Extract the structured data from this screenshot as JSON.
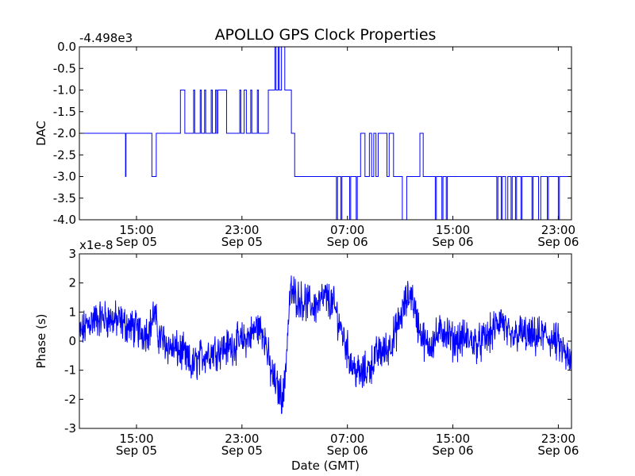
{
  "title": "APOLLO GPS Clock Properties",
  "chart_data": [
    {
      "type": "line",
      "ylabel": "DAC",
      "xlabel": "",
      "y_offset_text": "-4.498e3",
      "ylim": [
        -4.0,
        0.0
      ],
      "yticks": [
        0.0,
        -0.5,
        -1.0,
        -1.5,
        -2.0,
        -2.5,
        -3.0,
        -3.5,
        -4.0
      ],
      "ytick_labels": [
        "0.0",
        "-0.5",
        "-1.0",
        "-1.5",
        "-2.0",
        "-2.5",
        "-3.0",
        "-3.5",
        "-4.0"
      ],
      "xlim": [
        "Sep 05 10:40",
        "Sep 07 00:00"
      ],
      "xticks": [
        {
          "time": "Sep 05 15:00",
          "line1": "15:00",
          "line2": "Sep 05"
        },
        {
          "time": "Sep 05 23:00",
          "line1": "23:00",
          "line2": "Sep 05"
        },
        {
          "time": "Sep 06 07:00",
          "line1": "07:00",
          "line2": "Sep 06"
        },
        {
          "time": "Sep 06 15:00",
          "line1": "15:00",
          "line2": "Sep 06"
        },
        {
          "time": "Sep 06 23:00",
          "line1": "23:00",
          "line2": "Sep 06"
        }
      ],
      "series": [
        {
          "color": "#0000ff",
          "step_points": [
            [
              "Sep 05 10:40",
              -2.0
            ],
            [
              "Sep 05 14:10",
              -3.0
            ],
            [
              "Sep 05 14:12",
              -2.0
            ],
            [
              "Sep 05 16:10",
              -3.0
            ],
            [
              "Sep 05 16:30",
              -2.0
            ],
            [
              "Sep 05 18:00",
              -2.0
            ],
            [
              "Sep 05 18:20",
              -1.0
            ],
            [
              "Sep 05 18:40",
              -2.0
            ],
            [
              "Sep 05 19:20",
              -1.0
            ],
            [
              "Sep 05 19:25",
              -2.0
            ],
            [
              "Sep 05 19:50",
              -1.0
            ],
            [
              "Sep 05 19:55",
              -2.0
            ],
            [
              "Sep 05 20:10",
              -1.0
            ],
            [
              "Sep 05 20:15",
              -2.0
            ],
            [
              "Sep 05 20:40",
              -1.0
            ],
            [
              "Sep 05 20:45",
              -2.0
            ],
            [
              "Sep 05 21:00",
              -1.0
            ],
            [
              "Sep 05 21:05",
              -2.0
            ],
            [
              "Sep 05 21:10",
              -1.0
            ],
            [
              "Sep 05 21:50",
              -2.0
            ],
            [
              "Sep 05 22:50",
              -1.0
            ],
            [
              "Sep 05 22:55",
              -2.0
            ],
            [
              "Sep 05 23:10",
              -1.0
            ],
            [
              "Sep 05 23:20",
              -2.0
            ],
            [
              "Sep 05 23:40",
              -1.0
            ],
            [
              "Sep 05 23:45",
              -2.0
            ],
            [
              "Sep 06 00:10",
              -1.0
            ],
            [
              "Sep 06 00:15",
              -2.0
            ],
            [
              "Sep 06 01:00",
              -1.0
            ],
            [
              "Sep 06 01:30",
              0.0
            ],
            [
              "Sep 06 01:35",
              -1.0
            ],
            [
              "Sep 06 01:45",
              0.0
            ],
            [
              "Sep 06 01:50",
              -1.0
            ],
            [
              "Sep 06 02:00",
              0.0
            ],
            [
              "Sep 06 02:15",
              -1.0
            ],
            [
              "Sep 06 02:45",
              -2.0
            ],
            [
              "Sep 06 03:00",
              -3.0
            ],
            [
              "Sep 06 06:10",
              -4.0
            ],
            [
              "Sep 06 06:15",
              -3.0
            ],
            [
              "Sep 06 06:30",
              -4.0
            ],
            [
              "Sep 06 06:35",
              -3.0
            ],
            [
              "Sep 06 07:10",
              -4.0
            ],
            [
              "Sep 06 07:15",
              -3.0
            ],
            [
              "Sep 06 07:40",
              -4.0
            ],
            [
              "Sep 06 07:45",
              -3.0
            ],
            [
              "Sep 06 08:00",
              -2.0
            ],
            [
              "Sep 06 08:20",
              -3.0
            ],
            [
              "Sep 06 08:40",
              -2.0
            ],
            [
              "Sep 06 08:50",
              -3.0
            ],
            [
              "Sep 06 09:00",
              -2.0
            ],
            [
              "Sep 06 09:10",
              -3.0
            ],
            [
              "Sep 06 09:20",
              -2.0
            ],
            [
              "Sep 06 10:00",
              -3.0
            ],
            [
              "Sep 06 10:10",
              -2.0
            ],
            [
              "Sep 06 10:30",
              -3.0
            ],
            [
              "Sep 06 11:10",
              -4.0
            ],
            [
              "Sep 06 11:30",
              -3.0
            ],
            [
              "Sep 06 12:00",
              -3.0
            ],
            [
              "Sep 06 12:30",
              -2.0
            ],
            [
              "Sep 06 12:45",
              -3.0
            ],
            [
              "Sep 06 13:40",
              -4.0
            ],
            [
              "Sep 06 13:45",
              -3.0
            ],
            [
              "Sep 06 14:10",
              -4.0
            ],
            [
              "Sep 06 14:15",
              -3.0
            ],
            [
              "Sep 06 14:30",
              -4.0
            ],
            [
              "Sep 06 14:35",
              -3.0
            ],
            [
              "Sep 06 18:20",
              -4.0
            ],
            [
              "Sep 06 18:25",
              -3.0
            ],
            [
              "Sep 06 18:40",
              -4.0
            ],
            [
              "Sep 06 18:45",
              -3.0
            ],
            [
              "Sep 06 19:00",
              -4.0
            ],
            [
              "Sep 06 19:10",
              -3.0
            ],
            [
              "Sep 06 19:25",
              -4.0
            ],
            [
              "Sep 06 19:30",
              -3.0
            ],
            [
              "Sep 06 19:45",
              -4.0
            ],
            [
              "Sep 06 19:50",
              -3.0
            ],
            [
              "Sep 06 20:10",
              -4.0
            ],
            [
              "Sep 06 20:15",
              -3.0
            ],
            [
              "Sep 06 21:00",
              -4.0
            ],
            [
              "Sep 06 21:05",
              -3.0
            ],
            [
              "Sep 06 21:30",
              -4.0
            ],
            [
              "Sep 06 21:40",
              -3.0
            ],
            [
              "Sep 06 22:10",
              -4.0
            ],
            [
              "Sep 06 22:15",
              -3.0
            ],
            [
              "Sep 06 23:00",
              -4.0
            ],
            [
              "Sep 06 23:05",
              -3.0
            ],
            [
              "Sep 07 00:00",
              -3.0
            ]
          ]
        }
      ]
    },
    {
      "type": "line",
      "ylabel": "Phase (s)",
      "xlabel": "Date (GMT)",
      "y_offset_text": "x1e-8",
      "ylim": [
        -3,
        3
      ],
      "yticks": [
        3,
        2,
        1,
        0,
        -1,
        -2,
        -3
      ],
      "ytick_labels": [
        "3",
        "2",
        "1",
        "0",
        "-1",
        "-2",
        "-3"
      ],
      "xlim": [
        "Sep 05 10:40",
        "Sep 07 00:00"
      ],
      "xticks": [
        {
          "time": "Sep 05 15:00",
          "line1": "15:00",
          "line2": "Sep 05"
        },
        {
          "time": "Sep 05 23:00",
          "line1": "23:00",
          "line2": "Sep 05"
        },
        {
          "time": "Sep 06 07:00",
          "line1": "07:00",
          "line2": "Sep 06"
        },
        {
          "time": "Sep 06 15:00",
          "line1": "15:00",
          "line2": "Sep 06"
        },
        {
          "time": "Sep 06 23:00",
          "line1": "23:00",
          "line2": "Sep 06"
        }
      ],
      "series": [
        {
          "color": "#0000ff",
          "envelope": [
            [
              "Sep 05 10:40",
              0.2
            ],
            [
              "Sep 05 11:30",
              0.7
            ],
            [
              "Sep 05 12:30",
              0.8
            ],
            [
              "Sep 05 13:30",
              0.7
            ],
            [
              "Sep 05 14:30",
              0.5
            ],
            [
              "Sep 05 15:30",
              0.3
            ],
            [
              "Sep 05 16:00",
              0.4
            ],
            [
              "Sep 05 16:20",
              1.0
            ],
            [
              "Sep 05 16:40",
              0.2
            ],
            [
              "Sep 05 17:30",
              -0.2
            ],
            [
              "Sep 05 18:30",
              -0.4
            ],
            [
              "Sep 05 19:10",
              -0.9
            ],
            [
              "Sep 05 20:00",
              -0.5
            ],
            [
              "Sep 05 21:00",
              -0.3
            ],
            [
              "Sep 05 22:00",
              -0.2
            ],
            [
              "Sep 05 23:00",
              0.0
            ],
            [
              "Sep 05 23:40",
              0.2
            ],
            [
              "Sep 06 00:10",
              0.5
            ],
            [
              "Sep 06 00:40",
              0.3
            ],
            [
              "Sep 06 01:10",
              -1.0
            ],
            [
              "Sep 06 01:40",
              -1.6
            ],
            [
              "Sep 06 02:10",
              -1.9
            ],
            [
              "Sep 06 02:40",
              1.7
            ],
            [
              "Sep 06 03:30",
              1.4
            ],
            [
              "Sep 06 04:30",
              1.2
            ],
            [
              "Sep 06 05:20",
              1.5
            ],
            [
              "Sep 06 06:00",
              1.2
            ],
            [
              "Sep 06 06:40",
              0.2
            ],
            [
              "Sep 06 07:20",
              -0.8
            ],
            [
              "Sep 06 08:00",
              -1.2
            ],
            [
              "Sep 06 08:40",
              -0.9
            ],
            [
              "Sep 06 09:20",
              -0.4
            ],
            [
              "Sep 06 10:00",
              -0.3
            ],
            [
              "Sep 06 10:40",
              0.3
            ],
            [
              "Sep 06 11:20",
              1.2
            ],
            [
              "Sep 06 11:50",
              1.7
            ],
            [
              "Sep 06 12:20",
              0.6
            ],
            [
              "Sep 06 13:00",
              -0.2
            ],
            [
              "Sep 06 13:40",
              0.1
            ],
            [
              "Sep 06 14:20",
              0.4
            ],
            [
              "Sep 06 15:00",
              0.0
            ],
            [
              "Sep 06 16:00",
              0.1
            ],
            [
              "Sep 06 17:00",
              -0.1
            ],
            [
              "Sep 06 18:00",
              0.3
            ],
            [
              "Sep 06 18:40",
              0.8
            ],
            [
              "Sep 06 19:20",
              0.0
            ],
            [
              "Sep 06 20:00",
              0.3
            ],
            [
              "Sep 06 21:00",
              0.1
            ],
            [
              "Sep 06 22:00",
              0.2
            ],
            [
              "Sep 06 23:00",
              -0.1
            ],
            [
              "Sep 06 23:40",
              -0.6
            ],
            [
              "Sep 07 00:00",
              -0.8
            ]
          ],
          "noise_amplitude": 0.5
        }
      ]
    }
  ]
}
